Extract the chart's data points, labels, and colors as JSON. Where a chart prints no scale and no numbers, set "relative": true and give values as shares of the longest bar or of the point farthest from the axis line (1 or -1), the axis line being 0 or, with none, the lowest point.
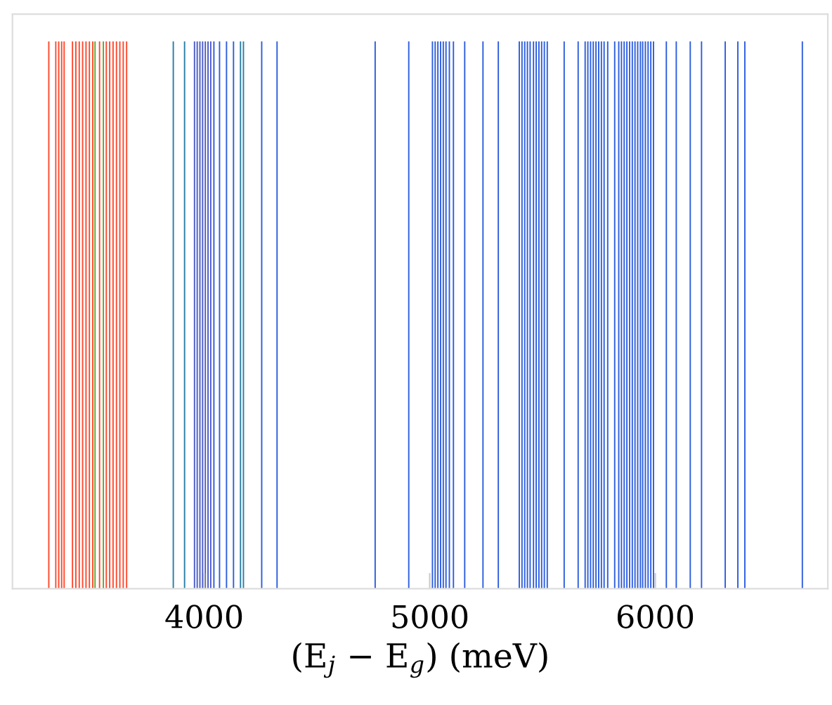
{
  "chart_data": {
    "type": "bar",
    "relative": true,
    "xlabel": "(E$_{j}$ − E$_{g}$) (meV)",
    "xlim": [
      3150,
      6765
    ],
    "xticks": [
      4000,
      5000,
      6000
    ],
    "tick_labels": "x",
    "grid": false,
    "legend": false,
    "series": [
      {
        "color": "#ff4a2e",
        "x": [
          3311,
          3342,
          3355,
          3368,
          3379,
          3416,
          3431,
          3446,
          3461,
          3476,
          3491,
          3506,
          3536,
          3566,
          3581,
          3596,
          3611,
          3626,
          3641,
          3656
        ],
        "values": [
          1,
          1,
          1,
          1,
          1,
          1,
          1,
          1,
          1,
          1,
          1,
          1,
          1,
          1,
          1,
          1,
          1,
          1,
          1,
          1
        ]
      },
      {
        "color": "#6aa02a",
        "x": [
          3516,
          3553
        ],
        "values": [
          1,
          1
        ]
      },
      {
        "color": "#2a7fa8",
        "x": [
          3863,
          3913,
          4161,
          4174
        ],
        "values": [
          1,
          1,
          1,
          1
        ]
      },
      {
        "color": "#4b5bc8",
        "x": [
          3957,
          3969,
          3981,
          3993,
          4005,
          4017,
          4029
        ],
        "values": [
          1,
          1,
          1,
          1,
          1,
          1,
          1
        ]
      },
      {
        "color": "#2f5fde",
        "x": [
          4043,
          4068,
          4099,
          4130,
          4255,
          4323,
          4758,
          4907,
          5012,
          5024,
          5036,
          5048,
          5060,
          5072,
          5087,
          5105,
          5155,
          5236,
          5304,
          5397,
          5409,
          5421,
          5433,
          5445,
          5460,
          5472,
          5484,
          5496,
          5508,
          5521,
          5596,
          5658,
          5689,
          5701,
          5713,
          5725,
          5737,
          5749,
          5761,
          5773,
          5789,
          5820,
          5838,
          5850,
          5862,
          5874,
          5886,
          5898,
          5910,
          5922,
          5934,
          5944,
          5956,
          5968,
          5980,
          5992,
          6049,
          6093,
          6155,
          6205,
          6310,
          6366,
          6397,
          6652
        ],
        "values": [
          1,
          1,
          1,
          1,
          1,
          1,
          1,
          1,
          1,
          1,
          1,
          1,
          1,
          1,
          1,
          1,
          1,
          1,
          1,
          1,
          1,
          1,
          1,
          1,
          1,
          1,
          1,
          1,
          1,
          1,
          1,
          1,
          1,
          1,
          1,
          1,
          1,
          1,
          1,
          1,
          1,
          1,
          1,
          1,
          1,
          1,
          1,
          1,
          1,
          1,
          1,
          1,
          1,
          1,
          1,
          1,
          1,
          1,
          1,
          1,
          1,
          1,
          1,
          1
        ]
      }
    ]
  }
}
